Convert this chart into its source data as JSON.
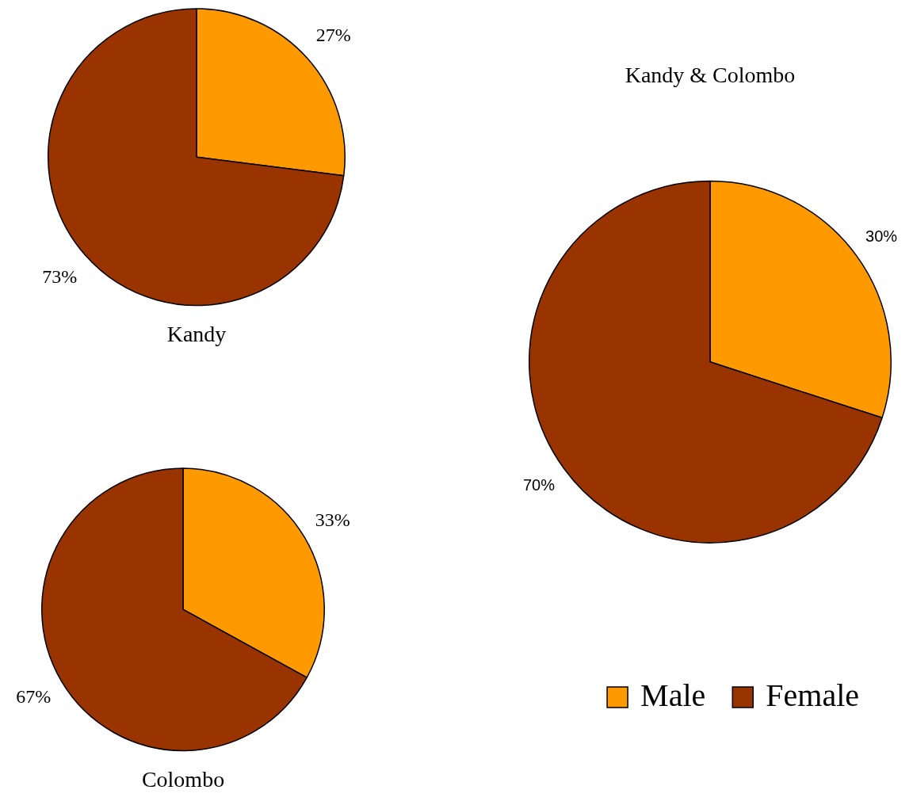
{
  "chart_data": [
    {
      "type": "pie",
      "title": "Kandy",
      "categories": [
        null,
        null
      ],
      "values": [
        27,
        73
      ],
      "colors": [
        "#ff9900",
        "#993300"
      ],
      "value_labels": [
        "27%",
        "73%"
      ]
    },
    {
      "type": "pie",
      "title": "Colombo",
      "categories": [
        null,
        null
      ],
      "values": [
        33,
        67
      ],
      "colors": [
        "#ff9900",
        "#993300"
      ],
      "value_labels": [
        "33%",
        "67%"
      ]
    },
    {
      "type": "pie",
      "title": "Kandy & Colombo",
      "categories": [
        "Male",
        "Female"
      ],
      "values": [
        30,
        70
      ],
      "colors": [
        "#ff9900",
        "#993300"
      ],
      "value_labels": [
        "30%",
        "70%"
      ],
      "legend": "bottom right"
    }
  ]
}
